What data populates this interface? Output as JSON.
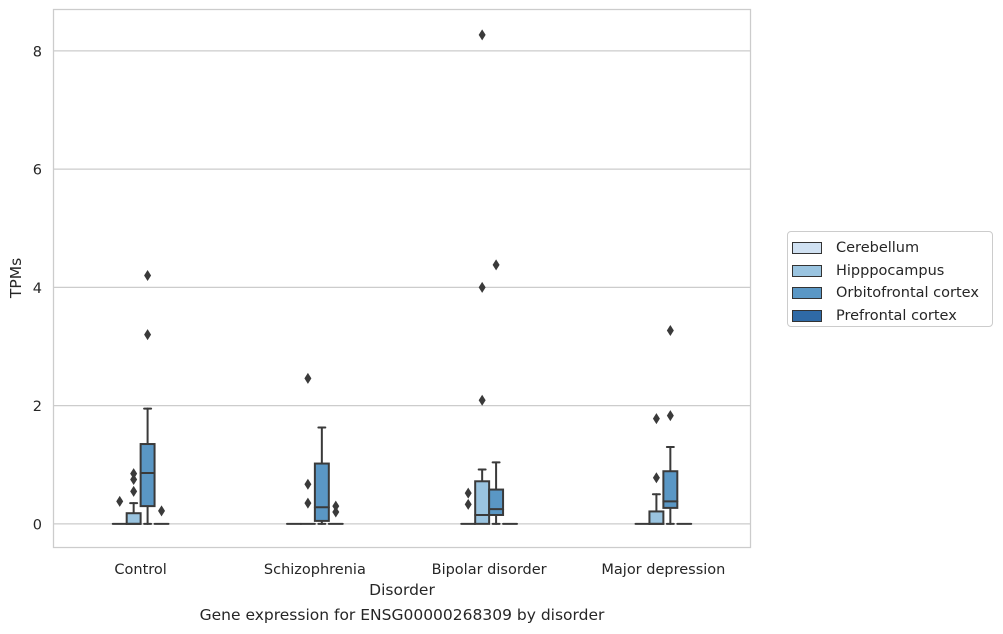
{
  "chart_data": {
    "type": "box",
    "xlabel": "Disorder",
    "ylabel": "TPMs",
    "ylim": [
      -0.4,
      8.7
    ],
    "yticks": [
      0,
      2,
      4,
      6,
      8
    ],
    "grid": true,
    "legend_placement": "center-right outside",
    "categories": [
      "Control",
      "Schizophrenia",
      "Bipolar disorder",
      "Major depression"
    ],
    "series": [
      {
        "name": "Cerebellum",
        "color": "#d0e1f2",
        "boxes": [
          {
            "q1": 0,
            "median": 0,
            "q3": 0,
            "whisker_low": 0,
            "whisker_high": 0,
            "outliers": [
              0.38
            ]
          },
          {
            "q1": 0,
            "median": 0,
            "q3": 0,
            "whisker_low": 0,
            "whisker_high": 0,
            "outliers": []
          },
          {
            "q1": 0,
            "median": 0,
            "q3": 0,
            "whisker_low": 0,
            "whisker_high": 0,
            "outliers": [
              0.33,
              0.52
            ]
          },
          {
            "q1": 0,
            "median": 0,
            "q3": 0,
            "whisker_low": 0,
            "whisker_high": 0,
            "outliers": []
          }
        ]
      },
      {
        "name": "Hipppocampus",
        "color": "#9ac4e0",
        "boxes": [
          {
            "q1": 0,
            "median": 0,
            "q3": 0.18,
            "whisker_low": 0,
            "whisker_high": 0.35,
            "outliers": [
              0.55,
              0.75,
              0.85
            ]
          },
          {
            "q1": 0,
            "median": 0,
            "q3": 0,
            "whisker_low": 0,
            "whisker_high": 0,
            "outliers": [
              0.35,
              0.67,
              2.46
            ]
          },
          {
            "q1": 0,
            "median": 0.15,
            "q3": 0.72,
            "whisker_low": 0,
            "whisker_high": 0.92,
            "outliers": [
              2.09,
              4.0,
              8.27
            ]
          },
          {
            "q1": 0,
            "median": 0,
            "q3": 0.21,
            "whisker_low": 0,
            "whisker_high": 0.5,
            "outliers": [
              0.78,
              1.78
            ]
          }
        ]
      },
      {
        "name": "Orbitofrontal cortex",
        "color": "#5a97c5",
        "boxes": [
          {
            "q1": 0.3,
            "median": 0.86,
            "q3": 1.35,
            "whisker_low": 0,
            "whisker_high": 1.95,
            "outliers": [
              3.2,
              4.2
            ]
          },
          {
            "q1": 0.05,
            "median": 0.28,
            "q3": 1.02,
            "whisker_low": 0,
            "whisker_high": 1.63,
            "outliers": []
          },
          {
            "q1": 0.15,
            "median": 0.25,
            "q3": 0.58,
            "whisker_low": 0,
            "whisker_high": 1.04,
            "outliers": [
              4.38
            ]
          },
          {
            "q1": 0.27,
            "median": 0.38,
            "q3": 0.89,
            "whisker_low": 0,
            "whisker_high": 1.3,
            "outliers": [
              1.83,
              3.27
            ]
          }
        ]
      },
      {
        "name": "Prefrontal cortex",
        "color": "#2f6aa6",
        "boxes": [
          {
            "q1": 0,
            "median": 0,
            "q3": 0,
            "whisker_low": 0,
            "whisker_high": 0,
            "outliers": [
              0.22
            ]
          },
          {
            "q1": 0,
            "median": 0,
            "q3": 0,
            "whisker_low": 0,
            "whisker_high": 0,
            "outliers": [
              0.2,
              0.3
            ]
          },
          {
            "q1": 0,
            "median": 0,
            "q3": 0,
            "whisker_low": 0,
            "whisker_high": 0,
            "outliers": []
          },
          {
            "q1": 0,
            "median": 0,
            "q3": 0,
            "whisker_low": 0,
            "whisker_high": 0,
            "outliers": []
          }
        ]
      }
    ]
  },
  "caption": "Gene expression for ENSG00000268309 by disorder",
  "legend": {
    "items": [
      {
        "label": "Cerebellum",
        "color": "#d0e1f2"
      },
      {
        "label": "Hipppocampus",
        "color": "#9ac4e0"
      },
      {
        "label": "Orbitofrontal cortex",
        "color": "#5a97c5"
      },
      {
        "label": "Prefrontal cortex",
        "color": "#2f6aa6"
      }
    ]
  }
}
